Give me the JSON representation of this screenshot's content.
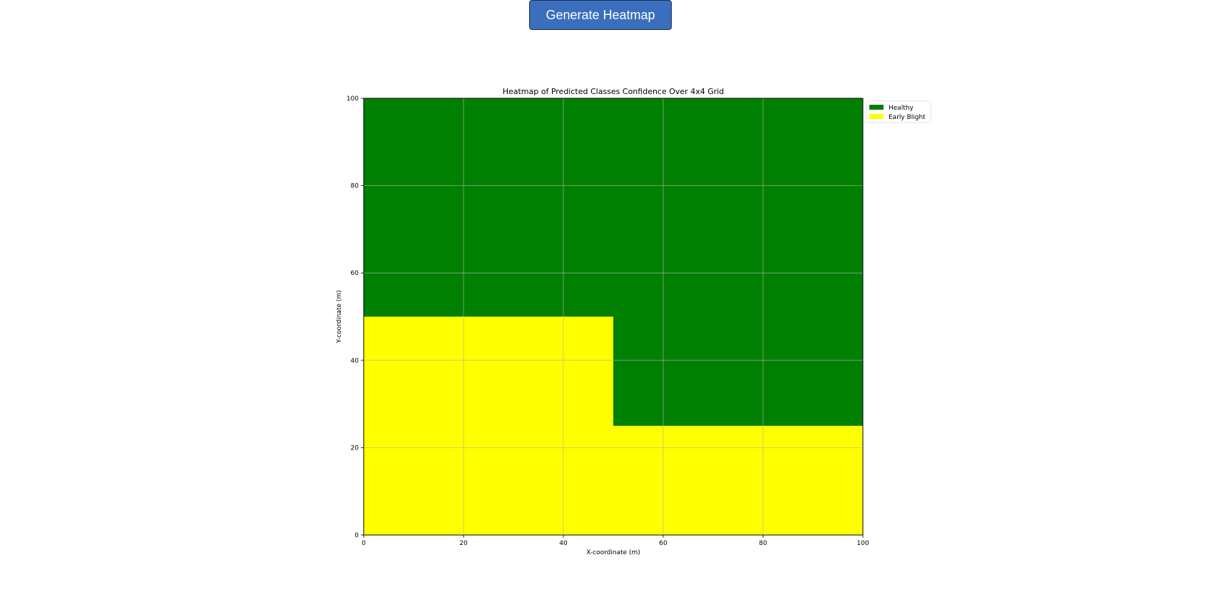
{
  "button": {
    "label": "Generate Heatmap"
  },
  "chart_data": {
    "type": "heatmap",
    "title": "Heatmap of Predicted Classes Confidence Over 4x4 Grid",
    "xlabel": "X-coordinate (m)",
    "ylabel": "Y-coordinate (m)",
    "xlim": [
      0,
      100
    ],
    "ylim": [
      0,
      100
    ],
    "xticks": [
      0,
      20,
      40,
      60,
      80,
      100
    ],
    "yticks": [
      0,
      20,
      40,
      60,
      80,
      100
    ],
    "grid": true,
    "legend_position": "outside-top-right",
    "legend": [
      {
        "label": "Healthy",
        "color": "#008000"
      },
      {
        "label": "Early Blight",
        "color": "#ffff00"
      }
    ],
    "regions": [
      {
        "class": "Healthy",
        "x0": 0,
        "x1": 100,
        "y0": 0,
        "y1": 100
      },
      {
        "class": "Early Blight",
        "x0": 0,
        "x1": 50,
        "y0": 0,
        "y1": 50
      },
      {
        "class": "Early Blight",
        "x0": 50,
        "x1": 100,
        "y0": 0,
        "y1": 25
      }
    ]
  }
}
